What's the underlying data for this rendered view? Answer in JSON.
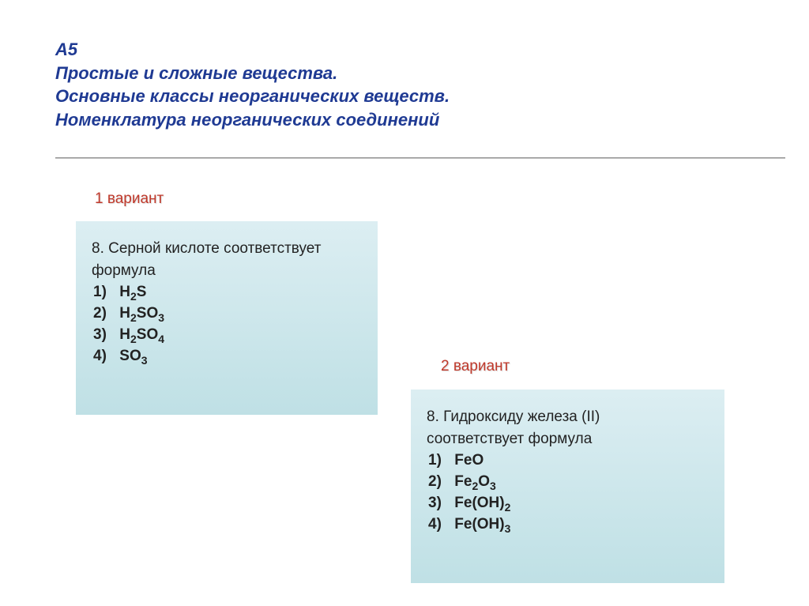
{
  "header": {
    "line1": "А5",
    "line2": "Простые и сложные вещества.",
    "line3": "Основные классы неорганических веществ.",
    "line4": "Номенклатура неорганических соединений"
  },
  "variant1": {
    "label": "1 вариант",
    "question_num": "8.",
    "question_text1": "Серной кислоте соответствует",
    "question_text2": "формула",
    "options": [
      {
        "num": "1)",
        "formula": "H2S",
        "display_parts": [
          {
            "t": "H"
          },
          {
            "s": "2"
          },
          {
            "t": "S"
          }
        ]
      },
      {
        "num": "2)",
        "formula": "H2SO3",
        "display_parts": [
          {
            "t": "H"
          },
          {
            "s": "2"
          },
          {
            "t": "SO"
          },
          {
            "s": "3"
          }
        ]
      },
      {
        "num": "3)",
        "formula": "H2SO4",
        "display_parts": [
          {
            "t": "H"
          },
          {
            "s": "2"
          },
          {
            "t": "SO"
          },
          {
            "s": "4"
          }
        ]
      },
      {
        "num": "4)",
        "formula": "SO3",
        "display_parts": [
          {
            "t": "SO"
          },
          {
            "s": "3"
          }
        ]
      }
    ]
  },
  "variant2": {
    "label": "2 вариант",
    "question_num": "8.",
    "question_text1": "Гидроксиду железа (II)",
    "question_text2": "соответствует формула",
    "options": [
      {
        "num": "1)",
        "formula": "FeO",
        "display_parts": [
          {
            "t": "FeO"
          }
        ]
      },
      {
        "num": "2)",
        "formula": "Fe2O3",
        "display_parts": [
          {
            "t": "Fe"
          },
          {
            "s": "2"
          },
          {
            "t": "O"
          },
          {
            "s": "3"
          }
        ]
      },
      {
        "num": "3)",
        "formula": "Fe(OH)2",
        "display_parts": [
          {
            "t": "Fe(OH)"
          },
          {
            "s": "2"
          }
        ]
      },
      {
        "num": "4)",
        "formula": "Fe(OH)3",
        "display_parts": [
          {
            "t": "Fe(OH)"
          },
          {
            "s": "3"
          }
        ]
      }
    ]
  },
  "colors": {
    "title": "#1f3a93",
    "variant_label": "#c0392b",
    "box_bg_top": "#dceef2",
    "box_bg_bottom": "#bfe0e5",
    "text": "#222222",
    "background": "#ffffff"
  }
}
